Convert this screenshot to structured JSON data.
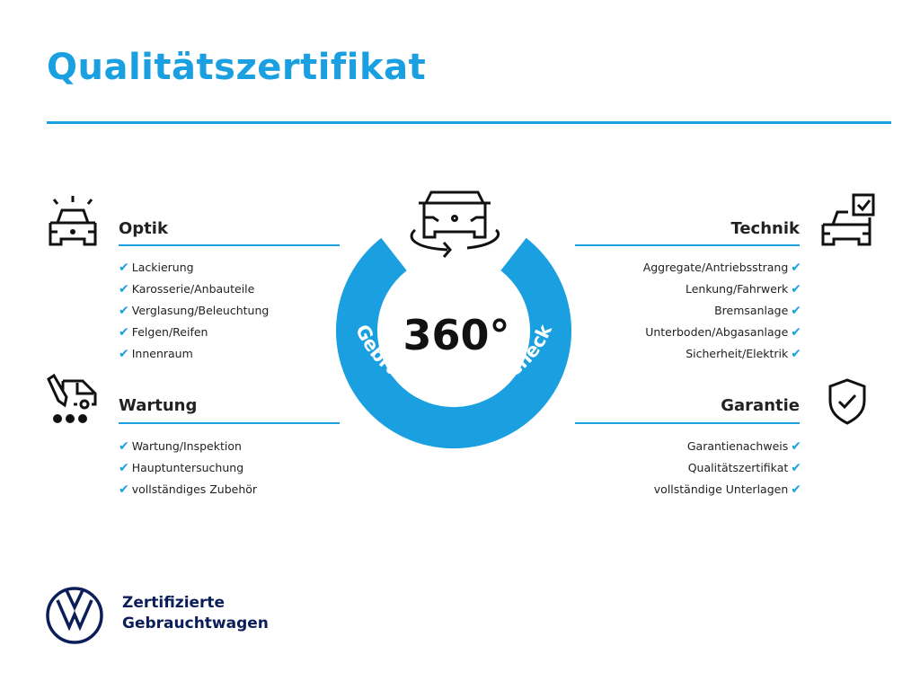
{
  "title": "Qualitätszertifikat",
  "colors": {
    "accent": "#1a9fe0",
    "brand": "#0b1e5a"
  },
  "center": {
    "degrees": "360°",
    "ring_text": "Gebrauchtwagen-Check",
    "icon": "car-rotate-icon"
  },
  "sections": {
    "optik": {
      "title": "Optik",
      "icon": "car-lights-icon",
      "items": [
        "Lackierung",
        "Karosserie/Anbauteile",
        "Verglasung/Beleuchtung",
        "Felgen/Reifen",
        "Innenraum"
      ]
    },
    "wartung": {
      "title": "Wartung",
      "icon": "service-van-icon",
      "items": [
        "Wartung/Inspektion",
        "Hauptuntersuchung",
        "vollständiges Zubehör"
      ]
    },
    "technik": {
      "title": "Technik",
      "icon": "car-checkbox-icon",
      "items": [
        "Aggregate/Antriebsstrang",
        "Lenkung/Fahrwerk",
        "Bremsanlage",
        "Unterboden/Abgasanlage",
        "Sicherheit/Elektrik"
      ]
    },
    "garantie": {
      "title": "Garantie",
      "icon": "shield-check-icon",
      "items": [
        "Garantienachweis",
        "Qualitätszertifikat",
        "vollständige Unterlagen"
      ]
    }
  },
  "check_mark": "✔",
  "footer": {
    "line1": "Zertifizierte",
    "line2": "Gebrauchtwagen",
    "logo": "vw-logo"
  }
}
